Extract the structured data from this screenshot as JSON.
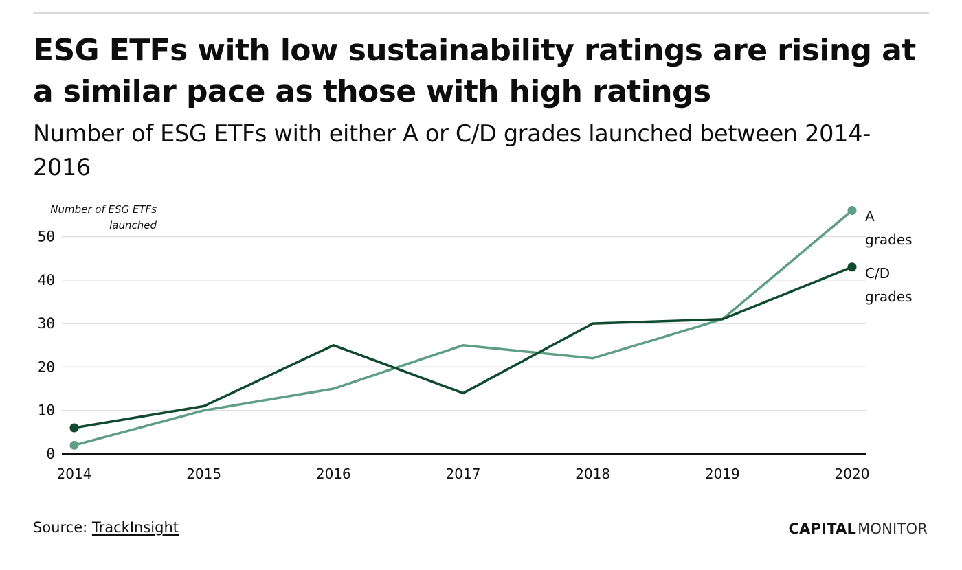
{
  "header": {
    "title": "ESG ETFs with low sustainability ratings are rising at a similar pace as those with high ratings",
    "subtitle": "Number of ESG ETFs with either A or C/D grades launched between 2014-2016"
  },
  "footer": {
    "source_prefix": "Source: ",
    "source_link": "TrackInsight",
    "brand_strong": "CAPITAL",
    "brand_light": "MONITOR"
  },
  "colors": {
    "a_grades": "#5e9e84",
    "cd_grades": "#0f4a2e",
    "grid": "#dddddd",
    "axis": "#111111",
    "rule": "#d9d9d9"
  },
  "chart_data": {
    "type": "line",
    "title": "ESG ETFs with low sustainability ratings are rising at a similar pace as those with high ratings",
    "subtitle": "Number of ESG ETFs with either A or C/D grades launched between 2014-2016",
    "xlabel": "",
    "ylabel": "Number of ESG ETFs launched",
    "ylabel_lines": [
      "Number of ESG ETFs",
      "launched"
    ],
    "x": [
      "2014",
      "2015",
      "2016",
      "2017",
      "2018",
      "2019",
      "2020"
    ],
    "yticks": [
      0,
      10,
      20,
      30,
      40,
      50
    ],
    "ylim": [
      0,
      56
    ],
    "grid": true,
    "legend": "inline-right-end-labels",
    "series": [
      {
        "name": "A grades",
        "label_lines": [
          "A",
          "grades"
        ],
        "color": "#5e9e84",
        "values": [
          2,
          10,
          15,
          25,
          22,
          31,
          56
        ],
        "markers": "endpoints"
      },
      {
        "name": "C/D grades",
        "label_lines": [
          "C/D",
          "grades"
        ],
        "color": "#0f4a2e",
        "values": [
          6,
          11,
          25,
          14,
          30,
          31,
          43
        ],
        "markers": "endpoints"
      }
    ],
    "source": "TrackInsight"
  }
}
